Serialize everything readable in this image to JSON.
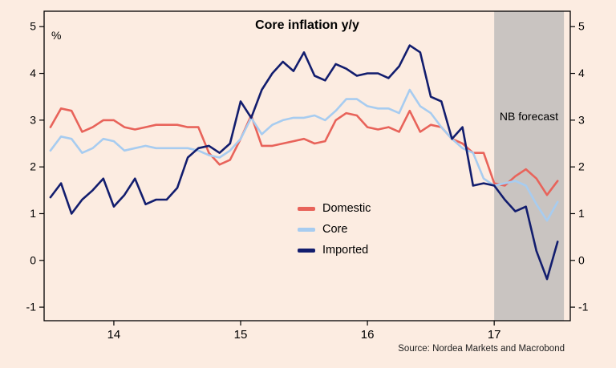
{
  "page": {
    "background_color": "#fcece1"
  },
  "chart_data": {
    "type": "line",
    "title": "Core inflation y/y",
    "unit_label": "%",
    "source": "Source: Nordea Markets and Macrobond",
    "x_start": 2013.5,
    "x_step": 0.08333333,
    "xlim": [
      2013.45,
      2017.6
    ],
    "ylim": [
      -1.29,
      5.33
    ],
    "y_ticks": [
      -1,
      0,
      1,
      2,
      3,
      4,
      5
    ],
    "x_ticks": [
      {
        "label": "14",
        "year": 2014
      },
      {
        "label": "15",
        "year": 2015
      },
      {
        "label": "16",
        "year": 2016
      },
      {
        "label": "17",
        "year": 2017
      }
    ],
    "forecast_band": {
      "label": "NB forecast",
      "from": 2017.0,
      "to": 2017.55,
      "color": "#c9c4c1"
    },
    "legend_position": "inside-center-bottom",
    "grid": "off",
    "series": [
      {
        "name": "Domestic",
        "color": "#e8635a",
        "values": [
          2.85,
          3.25,
          3.2,
          2.75,
          2.85,
          3.0,
          3.0,
          2.85,
          2.8,
          2.85,
          2.9,
          2.9,
          2.9,
          2.85,
          2.85,
          2.3,
          2.05,
          2.15,
          2.6,
          3.1,
          2.45,
          2.45,
          2.5,
          2.55,
          2.6,
          2.5,
          2.55,
          3.0,
          3.15,
          3.1,
          2.85,
          2.8,
          2.85,
          2.75,
          3.2,
          2.75,
          2.9,
          2.85,
          2.6,
          2.5,
          2.3,
          2.3,
          1.65,
          1.6,
          1.8,
          1.95,
          1.75,
          1.4,
          1.7
        ]
      },
      {
        "name": "Core",
        "color": "#a7ccf0",
        "values": [
          2.35,
          2.65,
          2.6,
          2.3,
          2.4,
          2.6,
          2.55,
          2.35,
          2.4,
          2.45,
          2.4,
          2.4,
          2.4,
          2.4,
          2.35,
          2.25,
          2.2,
          2.35,
          2.6,
          3.05,
          2.7,
          2.9,
          3.0,
          3.05,
          3.05,
          3.1,
          3.0,
          3.2,
          3.45,
          3.45,
          3.3,
          3.25,
          3.25,
          3.15,
          3.65,
          3.3,
          3.15,
          2.85,
          2.6,
          2.4,
          2.3,
          1.75,
          1.6,
          1.65,
          1.7,
          1.6,
          1.2,
          0.85,
          1.25
        ]
      },
      {
        "name": "Imported",
        "color": "#121d6e",
        "values": [
          1.35,
          1.65,
          1.0,
          1.3,
          1.5,
          1.75,
          1.15,
          1.4,
          1.75,
          1.2,
          1.3,
          1.3,
          1.55,
          2.2,
          2.4,
          2.45,
          2.3,
          2.5,
          3.4,
          3.05,
          3.65,
          4.0,
          4.25,
          4.05,
          4.45,
          3.95,
          3.85,
          4.2,
          4.1,
          3.95,
          4.0,
          4.0,
          3.9,
          4.15,
          4.6,
          4.45,
          3.5,
          3.4,
          2.6,
          2.85,
          1.6,
          1.65,
          1.6,
          1.3,
          1.05,
          1.15,
          0.2,
          -0.4,
          0.4
        ]
      }
    ]
  }
}
